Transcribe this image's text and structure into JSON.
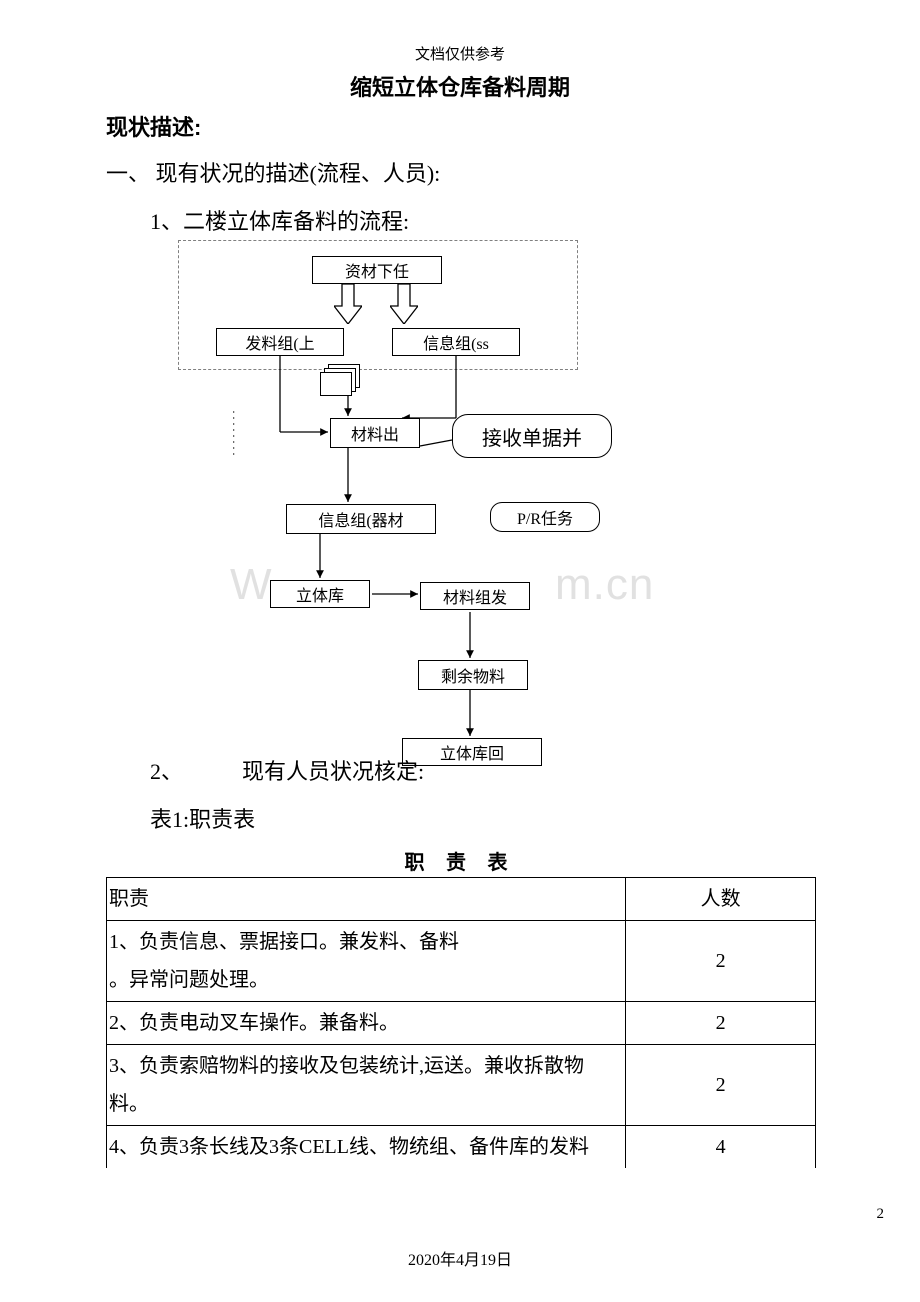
{
  "header_note": "文档仅供参考",
  "title": "缩短立体仓库备料周期",
  "section_status": "现状描述:",
  "item_1": "一、 现有状况的描述(流程、人员):",
  "sub_1": "1、二楼立体库备料的流程:",
  "sub_2": "2、",
  "sub_2_text": "现有人员状况核定:",
  "table_caption": "表1:职责表",
  "table_title": "职 责 表",
  "footer_date": "2020年4月19日",
  "page_number": "2",
  "watermark_left": "W",
  "watermark_right": "m.cn",
  "flow": {
    "top": "资材下任",
    "left": "发料组(上",
    "right": "信息组(ss",
    "mid": "材料出",
    "callout1": "接收单据并",
    "info2": "信息组(器材",
    "callout2": "P/R任务",
    "lib": "立体库",
    "matgroup": "材料组发",
    "remain": "剩余物料",
    "libback": "立体库回",
    "vertlabel": "········"
  },
  "table": {
    "headers": [
      "职责",
      "人数"
    ],
    "rows": [
      {
        "duty": "1、负责信息、票据接口。兼发料、备料\n。异常问题处理。",
        "count": "2"
      },
      {
        "duty": "2、负责电动叉车操作。兼备料。",
        "count": "2"
      },
      {
        "duty": "3、负责索赔物料的接收及包装统计,运送。兼收拆散物料。",
        "count": "2"
      },
      {
        "duty": "4、负责3条长线及3条CELL线、物统组、备件库的发料",
        "count": "4"
      }
    ]
  },
  "colors": {
    "text": "#000000",
    "background": "#ffffff",
    "dashed": "#808080",
    "watermark": "rgba(200,200,200,0.55)"
  }
}
